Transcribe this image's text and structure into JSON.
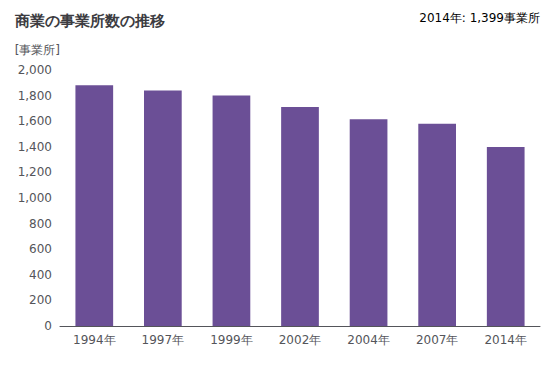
{
  "chart_data": {
    "type": "bar",
    "title": "商業の事業所数の推移",
    "ylabel": "[事業所]",
    "annotation": "2014年: 1,399事業所",
    "categories": [
      "1994年",
      "1997年",
      "1999年",
      "2002年",
      "2004年",
      "2007年",
      "2014年"
    ],
    "values": [
      1880,
      1840,
      1800,
      1710,
      1615,
      1580,
      1399
    ],
    "color": "#6b4f96",
    "ylim": [
      0,
      2000
    ],
    "yticks": [
      0,
      200,
      400,
      600,
      800,
      {
        "value": 1000,
        "label": "1,000"
      },
      {
        "value": 1200,
        "label": "1,200"
      },
      {
        "value": 1400,
        "label": "1,400"
      },
      {
        "value": 1600,
        "label": "1,600"
      },
      {
        "value": 1800,
        "label": "1,800"
      },
      {
        "value": 2000,
        "label": "2,000"
      }
    ],
    "grid": false
  }
}
